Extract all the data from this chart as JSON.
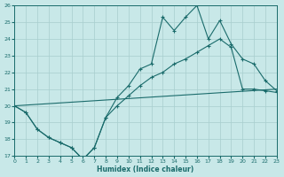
{
  "xlabel": "Humidex (Indice chaleur)",
  "background_color": "#c8e8e8",
  "grid_color": "#a8cece",
  "line_color": "#1a6b6b",
  "xlim": [
    0,
    23
  ],
  "ylim": [
    17,
    26
  ],
  "yticks": [
    17,
    18,
    19,
    20,
    21,
    22,
    23,
    24,
    25,
    26
  ],
  "xticks": [
    0,
    1,
    2,
    3,
    4,
    5,
    6,
    7,
    8,
    9,
    10,
    11,
    12,
    13,
    14,
    15,
    16,
    17,
    18,
    19,
    20,
    21,
    22,
    23
  ],
  "line1_x": [
    0,
    1,
    2,
    3,
    4,
    5,
    6,
    7,
    8,
    9,
    10,
    11,
    12,
    13,
    14,
    15,
    16,
    17,
    18,
    19,
    20,
    21,
    22,
    23
  ],
  "line1_y": [
    20.0,
    19.6,
    18.6,
    18.1,
    17.8,
    17.5,
    16.8,
    17.5,
    19.3,
    20.5,
    21.2,
    22.2,
    22.5,
    25.3,
    24.5,
    25.3,
    26.0,
    24.0,
    25.1,
    23.7,
    22.8,
    22.5,
    21.5,
    20.9
  ],
  "line2_x": [
    0,
    1,
    2,
    3,
    4,
    5,
    6,
    7,
    8,
    9,
    10,
    11,
    12,
    13,
    14,
    15,
    16,
    17,
    18,
    19,
    20,
    21,
    22,
    23
  ],
  "line2_y": [
    20.0,
    19.6,
    18.6,
    18.1,
    17.8,
    17.5,
    16.8,
    17.5,
    19.3,
    20.0,
    20.6,
    21.2,
    21.7,
    22.0,
    22.5,
    22.8,
    23.2,
    23.6,
    24.0,
    23.5,
    21.0,
    21.0,
    20.9,
    20.8
  ],
  "line3_x": [
    0,
    23
  ],
  "line3_y": [
    20.0,
    21.0
  ]
}
